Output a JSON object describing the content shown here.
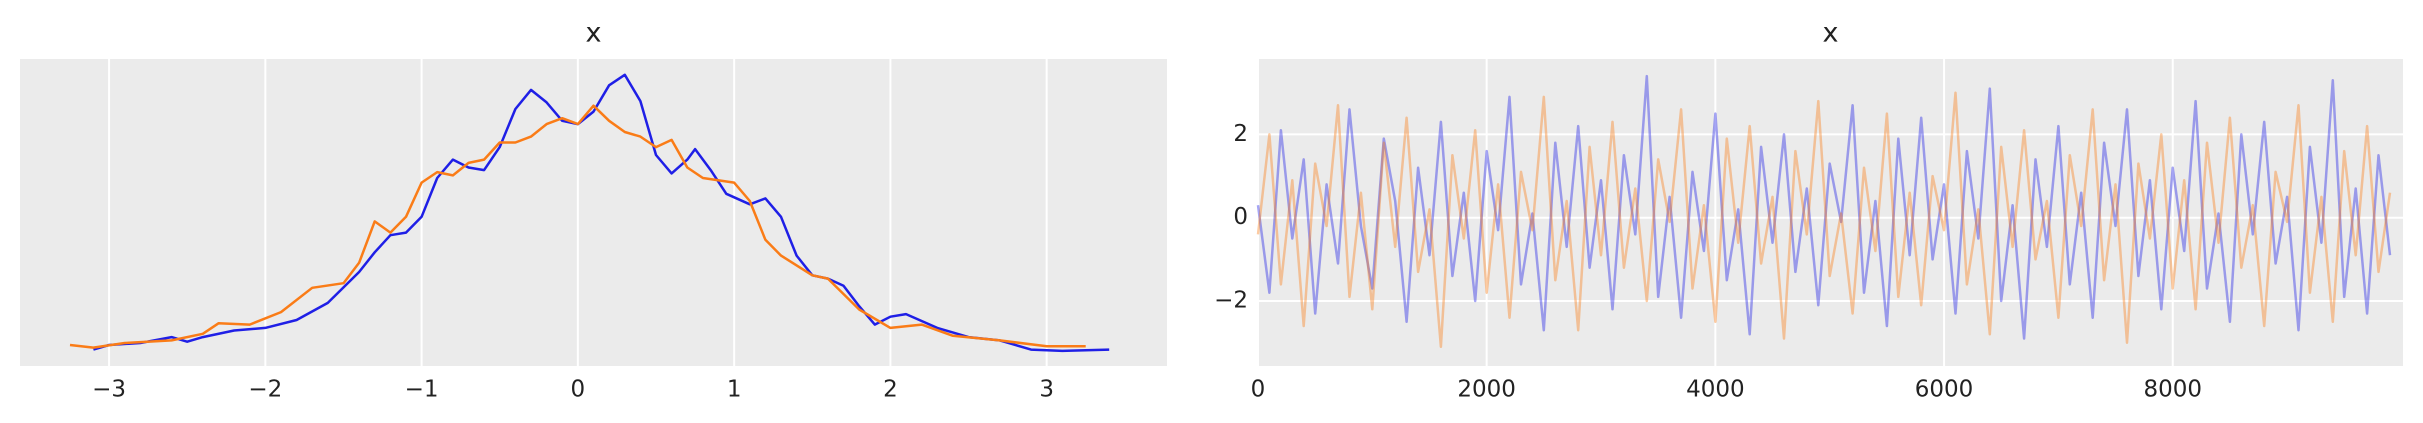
{
  "chart_data": [
    {
      "type": "line",
      "title": "x",
      "xlim": [
        -3.57,
        3.77
      ],
      "ylim": [
        -0.023,
        0.444
      ],
      "xticks": [
        {
          "value": -3,
          "label": "−3"
        },
        {
          "value": -2,
          "label": "−2"
        },
        {
          "value": -1,
          "label": "−1"
        },
        0,
        1,
        2,
        3
      ],
      "grid": true,
      "alpha": 1,
      "series": [
        {
          "color": "#1f1fe6",
          "x": [
            -3.1,
            -3.0,
            -2.8,
            -2.6,
            -2.5,
            -2.4,
            -2.2,
            -2.0,
            -1.8,
            -1.6,
            -1.4,
            -1.3,
            -1.2,
            -1.1,
            -1.0,
            -0.9,
            -0.8,
            -0.7,
            -0.6,
            -0.5,
            -0.4,
            -0.3,
            -0.2,
            -0.1,
            0,
            0.1,
            0.2,
            0.3,
            0.4,
            0.5,
            0.6,
            0.7,
            0.75,
            0.85,
            0.95,
            1.1,
            1.2,
            1.3,
            1.4,
            1.5,
            1.6,
            1.7,
            1.8,
            1.9,
            2.0,
            2.1,
            2.3,
            2.5,
            2.7,
            2.9,
            3.1,
            3.4
          ],
          "values": [
            0.002,
            0.009,
            0.012,
            0.021,
            0.014,
            0.021,
            0.031,
            0.035,
            0.047,
            0.073,
            0.12,
            0.15,
            0.176,
            0.18,
            0.204,
            0.263,
            0.291,
            0.279,
            0.275,
            0.31,
            0.368,
            0.397,
            0.378,
            0.35,
            0.345,
            0.364,
            0.404,
            0.42,
            0.38,
            0.298,
            0.27,
            0.291,
            0.307,
            0.275,
            0.239,
            0.223,
            0.232,
            0.204,
            0.145,
            0.115,
            0.11,
            0.099,
            0.068,
            0.04,
            0.052,
            0.056,
            0.035,
            0.021,
            0.016,
            0.002,
            0.0,
            0.002
          ]
        },
        {
          "color": "#fa7c17",
          "x": [
            -3.25,
            -3.1,
            -2.9,
            -2.6,
            -2.4,
            -2.3,
            -2.1,
            -1.9,
            -1.7,
            -1.5,
            -1.4,
            -1.3,
            -1.2,
            -1.1,
            -1.0,
            -0.9,
            -0.8,
            -0.7,
            -0.6,
            -0.5,
            -0.4,
            -0.3,
            -0.2,
            -0.1,
            0,
            0.1,
            0.2,
            0.3,
            0.4,
            0.5,
            0.6,
            0.7,
            0.8,
            1.0,
            1.1,
            1.2,
            1.3,
            1.5,
            1.6,
            1.8,
            2.0,
            2.2,
            2.4,
            2.7,
            3.0,
            3.25
          ],
          "values": [
            0.009,
            0.005,
            0.012,
            0.016,
            0.026,
            0.042,
            0.04,
            0.059,
            0.096,
            0.103,
            0.134,
            0.197,
            0.18,
            0.204,
            0.256,
            0.272,
            0.267,
            0.286,
            0.291,
            0.317,
            0.317,
            0.326,
            0.345,
            0.354,
            0.345,
            0.373,
            0.35,
            0.333,
            0.326,
            0.31,
            0.321,
            0.279,
            0.263,
            0.256,
            0.228,
            0.169,
            0.145,
            0.115,
            0.11,
            0.063,
            0.035,
            0.04,
            0.023,
            0.016,
            0.007,
            0.007
          ]
        }
      ]
    },
    {
      "type": "line",
      "title": "x",
      "xlim": [
        0,
        10014
      ],
      "ylim": [
        -3.56,
        3.81
      ],
      "xticks": [
        0,
        2000,
        4000,
        6000,
        8000
      ],
      "yticks": [
        {
          "value": -2,
          "label": "−2"
        },
        0,
        2
      ],
      "grid": true,
      "alpha": 0.4,
      "x": [
        0,
        100,
        200,
        300,
        400,
        500,
        600,
        700,
        800,
        900,
        1000,
        1100,
        1200,
        1300,
        1400,
        1500,
        1600,
        1700,
        1800,
        1900,
        2000,
        2100,
        2200,
        2300,
        2400,
        2500,
        2600,
        2700,
        2800,
        2900,
        3000,
        3100,
        3200,
        3300,
        3400,
        3500,
        3600,
        3700,
        3800,
        3900,
        4000,
        4100,
        4200,
        4300,
        4400,
        4500,
        4600,
        4700,
        4800,
        4900,
        5000,
        5100,
        5200,
        5300,
        5400,
        5500,
        5600,
        5700,
        5800,
        5900,
        6000,
        6100,
        6200,
        6300,
        6400,
        6500,
        6600,
        6700,
        6800,
        6900,
        7000,
        7100,
        7200,
        7300,
        7400,
        7500,
        7600,
        7700,
        7800,
        7900,
        8000,
        8100,
        8200,
        8300,
        8400,
        8500,
        8600,
        8700,
        8800,
        8900,
        9000,
        9100,
        9200,
        9300,
        9400,
        9500,
        9600,
        9700,
        9800,
        9900
      ],
      "series": [
        {
          "color": "#1f1fe6",
          "values": [
            0.3,
            -1.8,
            2.1,
            -0.5,
            1.4,
            -2.3,
            0.8,
            -1.1,
            2.6,
            -0.2,
            -1.7,
            1.9,
            0.4,
            -2.5,
            1.2,
            -0.9,
            2.3,
            -1.4,
            0.6,
            -2.0,
            1.6,
            -0.3,
            2.9,
            -1.6,
            0.1,
            -2.7,
            1.8,
            -0.7,
            2.2,
            -1.2,
            0.9,
            -2.2,
            1.5,
            -0.4,
            3.4,
            -1.9,
            0.5,
            -2.4,
            1.1,
            -0.8,
            2.5,
            -1.5,
            0.2,
            -2.8,
            1.7,
            -0.6,
            2.0,
            -1.3,
            0.7,
            -2.1,
            1.3,
            -0.1,
            2.7,
            -1.8,
            0.4,
            -2.6,
            1.9,
            -0.9,
            2.4,
            -1.0,
            0.8,
            -2.3,
            1.6,
            -0.5,
            3.1,
            -2.0,
            0.3,
            -2.9,
            1.4,
            -0.7,
            2.2,
            -1.6,
            0.6,
            -2.4,
            1.8,
            -0.2,
            2.6,
            -1.4,
            0.9,
            -2.2,
            1.2,
            -0.8,
            2.8,
            -1.7,
            0.1,
            -2.5,
            2.0,
            -0.4,
            2.3,
            -1.1,
            0.5,
            -2.7,
            1.7,
            -0.6,
            3.3,
            -1.9,
            0.7,
            -2.3,
            1.5,
            -0.9
          ]
        },
        {
          "color": "#fa7c17",
          "values": [
            -0.4,
            2.0,
            -1.6,
            0.9,
            -2.6,
            1.3,
            -0.2,
            2.7,
            -1.9,
            0.6,
            -2.2,
            1.8,
            -0.7,
            2.4,
            -1.3,
            0.2,
            -3.1,
            1.5,
            -0.5,
            2.1,
            -1.8,
            0.8,
            -2.4,
            1.1,
            -0.3,
            2.9,
            -1.5,
            0.4,
            -2.7,
            1.7,
            -0.9,
            2.3,
            -1.2,
            0.7,
            -2.0,
            1.4,
            -0.1,
            2.6,
            -1.7,
            0.3,
            -2.5,
            1.9,
            -0.6,
            2.2,
            -1.1,
            0.5,
            -2.9,
            1.6,
            -0.4,
            2.8,
            -1.4,
            0.1,
            -2.3,
            1.2,
            -0.8,
            2.5,
            -1.9,
            0.6,
            -2.1,
            1.0,
            -0.3,
            3.0,
            -1.6,
            0.2,
            -2.8,
            1.7,
            -0.7,
            2.1,
            -1.0,
            0.4,
            -2.4,
            1.5,
            -0.2,
            2.6,
            -1.5,
            0.8,
            -3.0,
            1.3,
            -0.5,
            2.0,
            -1.7,
            0.9,
            -2.2,
            1.8,
            -0.6,
            2.4,
            -1.2,
            0.3,
            -2.6,
            1.1,
            -0.1,
            2.7,
            -1.8,
            0.5,
            -2.5,
            1.6,
            -0.9,
            2.2,
            -1.3,
            0.6
          ]
        }
      ]
    }
  ]
}
